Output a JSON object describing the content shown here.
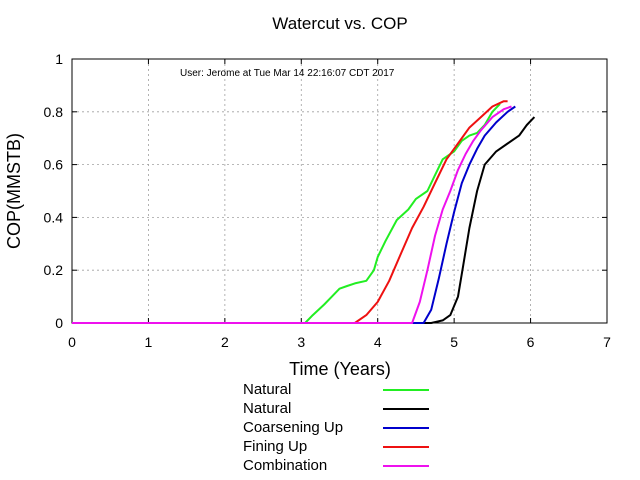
{
  "chart_data": {
    "type": "line",
    "title": "Watercut vs. COP",
    "xlabel": "Time (Years)",
    "ylabel": "COP(MMSTB)",
    "xlim": [
      0,
      7
    ],
    "ylim": [
      0,
      1
    ],
    "xticks": [
      "0",
      "1",
      "2",
      "3",
      "4",
      "5",
      "6",
      "7"
    ],
    "yticks": [
      "0",
      "0.2",
      "0.4",
      "0.6",
      "0.8",
      "1"
    ],
    "grid": true,
    "legend_position": "bottom",
    "annotation": "User: Jerome at Tue Mar 14 22:16:07 CDT 2017",
    "series": [
      {
        "name": "Natural",
        "color": "#22ee22",
        "points": [
          [
            0,
            0
          ],
          [
            3.05,
            0
          ],
          [
            3.15,
            0.03
          ],
          [
            3.3,
            0.07
          ],
          [
            3.4,
            0.1
          ],
          [
            3.5,
            0.13
          ],
          [
            3.6,
            0.14
          ],
          [
            3.7,
            0.15
          ],
          [
            3.85,
            0.16
          ],
          [
            3.95,
            0.2
          ],
          [
            4.0,
            0.25
          ],
          [
            4.1,
            0.31
          ],
          [
            4.25,
            0.39
          ],
          [
            4.4,
            0.43
          ],
          [
            4.5,
            0.47
          ],
          [
            4.65,
            0.5
          ],
          [
            4.75,
            0.56
          ],
          [
            4.85,
            0.62
          ],
          [
            5.0,
            0.65
          ],
          [
            5.1,
            0.69
          ],
          [
            5.2,
            0.71
          ],
          [
            5.3,
            0.72
          ],
          [
            5.4,
            0.75
          ],
          [
            5.5,
            0.8
          ],
          [
            5.6,
            0.83
          ]
        ]
      },
      {
        "name": "Natural",
        "color": "#000000",
        "points": [
          [
            0,
            0
          ],
          [
            4.7,
            0
          ],
          [
            4.85,
            0.01
          ],
          [
            4.95,
            0.03
          ],
          [
            5.05,
            0.1
          ],
          [
            5.12,
            0.22
          ],
          [
            5.2,
            0.36
          ],
          [
            5.3,
            0.5
          ],
          [
            5.4,
            0.6
          ],
          [
            5.55,
            0.65
          ],
          [
            5.7,
            0.68
          ],
          [
            5.85,
            0.71
          ],
          [
            5.95,
            0.75
          ],
          [
            6.05,
            0.78
          ]
        ]
      },
      {
        "name": "Coarsening Up",
        "color": "#0000cc",
        "points": [
          [
            0,
            0
          ],
          [
            4.6,
            0
          ],
          [
            4.7,
            0.05
          ],
          [
            4.8,
            0.17
          ],
          [
            4.9,
            0.3
          ],
          [
            5.0,
            0.42
          ],
          [
            5.1,
            0.53
          ],
          [
            5.2,
            0.6
          ],
          [
            5.3,
            0.66
          ],
          [
            5.4,
            0.71
          ],
          [
            5.55,
            0.76
          ],
          [
            5.7,
            0.8
          ],
          [
            5.8,
            0.82
          ]
        ]
      },
      {
        "name": "Fining Up",
        "color": "#ee1111",
        "points": [
          [
            0,
            0
          ],
          [
            3.7,
            0
          ],
          [
            3.85,
            0.03
          ],
          [
            4.0,
            0.08
          ],
          [
            4.15,
            0.16
          ],
          [
            4.3,
            0.26
          ],
          [
            4.45,
            0.36
          ],
          [
            4.6,
            0.44
          ],
          [
            4.75,
            0.53
          ],
          [
            4.9,
            0.62
          ],
          [
            5.05,
            0.68
          ],
          [
            5.2,
            0.74
          ],
          [
            5.35,
            0.78
          ],
          [
            5.5,
            0.82
          ],
          [
            5.65,
            0.84
          ],
          [
            5.7,
            0.84
          ]
        ]
      },
      {
        "name": "Combination",
        "color": "#ee11ee",
        "points": [
          [
            0,
            0
          ],
          [
            4.45,
            0
          ],
          [
            4.55,
            0.08
          ],
          [
            4.65,
            0.2
          ],
          [
            4.75,
            0.33
          ],
          [
            4.85,
            0.43
          ],
          [
            4.95,
            0.5
          ],
          [
            5.05,
            0.58
          ],
          [
            5.15,
            0.64
          ],
          [
            5.25,
            0.69
          ],
          [
            5.35,
            0.73
          ],
          [
            5.5,
            0.78
          ],
          [
            5.65,
            0.81
          ],
          [
            5.75,
            0.82
          ]
        ]
      }
    ]
  }
}
